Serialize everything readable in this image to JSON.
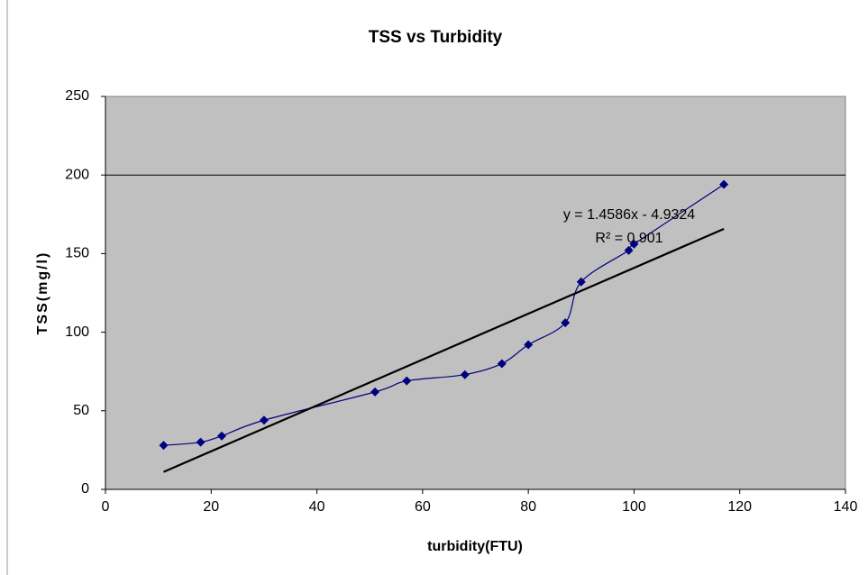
{
  "chart_data": {
    "type": "scatter",
    "title": "TSS vs Turbidity",
    "x_label": "turbidity(FTU)",
    "y_label": "TSS(mg/l)",
    "series": [
      {
        "name": "TSS",
        "color": "#000080",
        "x": [
          11,
          18,
          22,
          30,
          51,
          57,
          68,
          75,
          80,
          87,
          90,
          99,
          100,
          117
        ],
        "values": [
          28,
          30,
          34,
          44,
          62,
          69,
          73,
          80,
          92,
          106,
          132,
          152,
          156,
          194
        ]
      }
    ],
    "trendline": {
      "slope": 1.4586,
      "intercept": -4.9324,
      "color": "#000000",
      "label": "y = 1.4586x - 4.9324",
      "r2_label": "R² = 0.901"
    },
    "xlim": [
      0,
      140
    ],
    "xticks": [
      0,
      20,
      40,
      60,
      80,
      100,
      120,
      140
    ],
    "ylim": [
      0,
      250
    ],
    "yticks": [
      0,
      50,
      100,
      150,
      200,
      250
    ],
    "ygrid": [
      200
    ],
    "plot_background": "#c0c0c0"
  }
}
